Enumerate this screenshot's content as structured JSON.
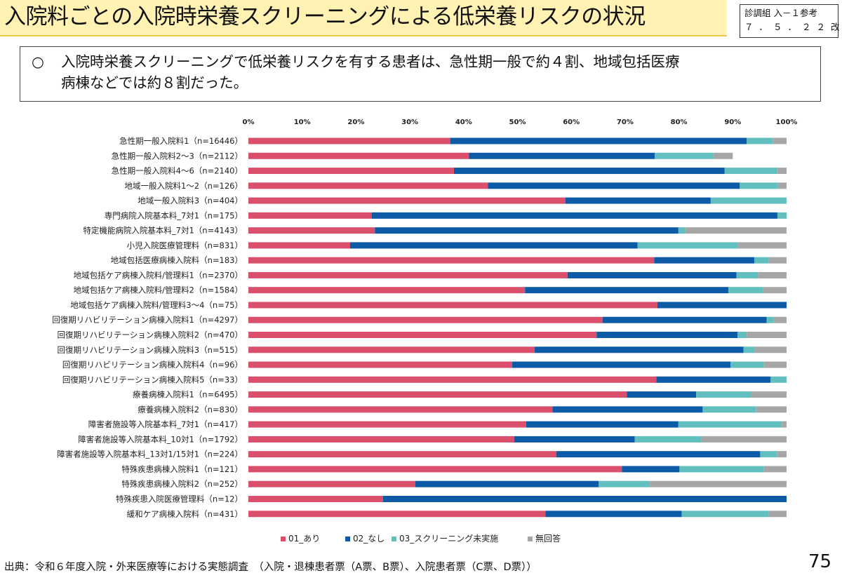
{
  "header": {
    "title": "入院料ごとの入院時栄養スクリーニングによる低栄養リスクの状況",
    "ref_line1": "診調組 入－１参考",
    "ref_line2": "７．５．２２改"
  },
  "summary": {
    "bullet": "○",
    "line1": "入院時栄養スクリーニングで低栄養リスクを有する患者は、急性期一般で約４割、地域包括医療",
    "line2": "病棟などでは約８割だった。"
  },
  "footer": {
    "source": "出典：令和６年度入院・外来医療等における実態調査　（入院・退棟患者票（A票、B票）、入院患者票（C票、D票））",
    "page_number": "75"
  },
  "chart_data": {
    "type": "bar",
    "orientation": "horizontal",
    "stacked": true,
    "percent_scale": true,
    "xlim": [
      0,
      100
    ],
    "x_ticks": [
      "0%",
      "10%",
      "20%",
      "30%",
      "40%",
      "50%",
      "60%",
      "70%",
      "80%",
      "90%",
      "100%"
    ],
    "tick_position": "top",
    "legend_position": "bottom",
    "grid": false,
    "categories": [
      "急性期一般入院料1（n=16446）",
      "急性期一般入院料2～3（n=2112）",
      "急性期一般入院料4～6（n=2140）",
      "地域一般入院料1～2（n=126）",
      "地域一般入院料3（n=404）",
      "専門病院入院基本料_7対1（n=175）",
      "特定機能病院入院基本料_7対1（n=4143）",
      "小児入院医療管理料（n=831）",
      "地域包括医療病棟入院料（n=183）",
      "地域包括ケア病棟入院料/管理料1（n=2370）",
      "地域包括ケア病棟入院料/管理料2（n=1584）",
      "地域包括ケア病棟入院料/管理料3～4（n=75）",
      "回復期リハビリテーション病棟入院料1（n=4297）",
      "回復期リハビリテーション病棟入院料2（n=470）",
      "回復期リハビリテーション病棟入院料3（n=515）",
      "回復期リハビリテーション病棟入院料4（n=96）",
      "回復期リハビリテーション病棟入院料5（n=33）",
      "療養病棟入院料1（n=6495）",
      "療養病棟入院料2（n=830）",
      "障害者施設等入院基本料_7対1（n=417）",
      "障害者施設等入院基本料_10対1（n=1792）",
      "障害者施設等入院基本料_13対1/15対1（n=224）",
      "特殊疾患病棟入院料1（n=121）",
      "特殊疾患病棟入院料2（n=252）",
      "特殊疾患入院医療管理料（n=12）",
      "緩和ケア病棟入院料（n=431）"
    ],
    "series": [
      {
        "name": "01_あり",
        "color": "#d94f6c",
        "values": [
          37.5,
          41.0,
          38.2,
          44.5,
          58.9,
          22.9,
          23.5,
          18.9,
          75.4,
          59.3,
          51.4,
          76.0,
          65.8,
          64.7,
          53.2,
          49.0,
          75.8,
          70.3,
          56.5,
          51.6,
          49.4,
          57.2,
          69.4,
          31.0,
          25.0,
          55.2
        ]
      },
      {
        "name": "02_なし",
        "color": "#0d5aa7",
        "values": [
          55.1,
          34.5,
          50.3,
          46.8,
          27.0,
          75.4,
          56.4,
          53.4,
          18.6,
          31.4,
          37.8,
          24.0,
          30.5,
          26.2,
          38.8,
          40.6,
          21.2,
          12.9,
          27.9,
          28.3,
          22.4,
          37.9,
          10.7,
          34.1,
          75.0,
          25.3
        ]
      },
      {
        "name": "03_スクリーニング未実施",
        "color": "#62bfbf",
        "values": [
          4.9,
          10.9,
          9.7,
          7.1,
          14.1,
          1.7,
          1.3,
          18.6,
          2.7,
          4.0,
          6.4,
          0.0,
          1.3,
          1.7,
          2.1,
          6.2,
          3.0,
          10.2,
          9.9,
          19.2,
          12.4,
          3.1,
          15.7,
          9.5,
          0.0,
          16.2
        ]
      },
      {
        "name": "無回答",
        "color": "#a6a6a6",
        "values": [
          2.5,
          3.6,
          1.8,
          1.6,
          0.0,
          0.0,
          18.8,
          9.1,
          3.3,
          5.3,
          4.4,
          0.0,
          2.4,
          7.4,
          5.9,
          4.2,
          0.0,
          6.6,
          5.7,
          0.9,
          15.8,
          1.8,
          4.2,
          25.4,
          0.0,
          3.3
        ]
      }
    ]
  }
}
